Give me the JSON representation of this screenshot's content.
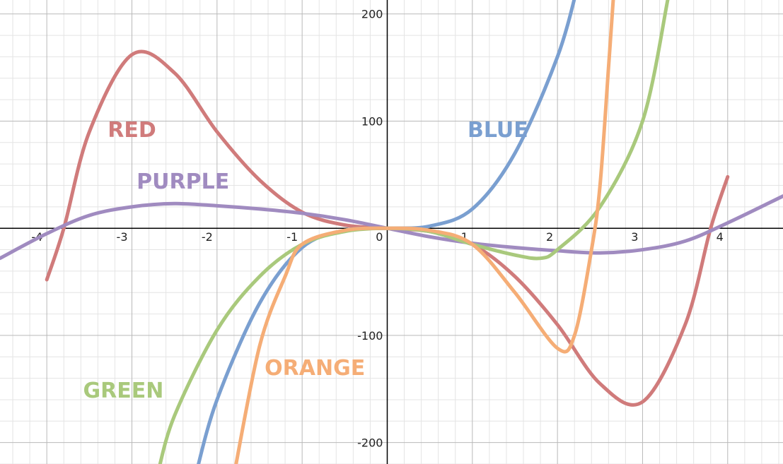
{
  "chart_data": {
    "type": "line",
    "title": "",
    "xlabel": "",
    "ylabel": "",
    "xlim": [
      -4.55,
      4.65
    ],
    "ylim": [
      -220,
      213
    ],
    "grid": true,
    "minor_grid": true,
    "x_ticks": [
      {
        "value": -4,
        "label": "-4"
      },
      {
        "value": -3,
        "label": "-3"
      },
      {
        "value": -2,
        "label": "-2"
      },
      {
        "value": -1,
        "label": "-1"
      },
      {
        "value": 0,
        "label": "0"
      },
      {
        "value": 1,
        "label": "1"
      },
      {
        "value": 2,
        "label": "2"
      },
      {
        "value": 3,
        "label": "3"
      },
      {
        "value": 4,
        "label": "4"
      }
    ],
    "y_ticks": [
      {
        "value": 200,
        "label": "200"
      },
      {
        "value": 100,
        "label": "100"
      },
      {
        "value": -100,
        "label": "-100"
      },
      {
        "value": -200,
        "label": "-200"
      }
    ],
    "series": [
      {
        "name": "RED",
        "color": "#d07b7b",
        "label_at": [
          -3.0,
          85
        ],
        "points": [
          [
            -4.0,
            -48
          ],
          [
            -3.8,
            0
          ],
          [
            -3.5,
            90
          ],
          [
            -3.0,
            162
          ],
          [
            -2.5,
            145
          ],
          [
            -2.0,
            90
          ],
          [
            -1.5,
            45
          ],
          [
            -1.0,
            15
          ],
          [
            -0.5,
            3
          ],
          [
            0.0,
            0
          ],
          [
            0.5,
            -3
          ],
          [
            1.0,
            -15
          ],
          [
            1.5,
            -45
          ],
          [
            2.0,
            -90
          ],
          [
            2.5,
            -145
          ],
          [
            3.0,
            -162
          ],
          [
            3.5,
            -90
          ],
          [
            3.8,
            0
          ],
          [
            4.0,
            48
          ]
        ]
      },
      {
        "name": "PURPLE",
        "color": "#a08bc0",
        "label_at": [
          -2.4,
          37
        ],
        "points": [
          [
            -4.55,
            -28
          ],
          [
            -4.0,
            -5
          ],
          [
            -3.5,
            12
          ],
          [
            -3.0,
            20
          ],
          [
            -2.5,
            23
          ],
          [
            -2.0,
            21
          ],
          [
            -1.5,
            18
          ],
          [
            -1.0,
            14
          ],
          [
            -0.5,
            8
          ],
          [
            0.0,
            0
          ],
          [
            0.5,
            -8
          ],
          [
            1.0,
            -14
          ],
          [
            1.5,
            -18
          ],
          [
            2.0,
            -21
          ],
          [
            2.5,
            -23
          ],
          [
            3.0,
            -20
          ],
          [
            3.5,
            -12
          ],
          [
            4.0,
            5
          ],
          [
            4.65,
            30
          ]
        ]
      },
      {
        "name": "BLUE",
        "color": "#7a9fd0",
        "label_at": [
          1.3,
          85
        ],
        "points": [
          [
            -2.25,
            -230
          ],
          [
            -2.0,
            -160
          ],
          [
            -1.5,
            -70
          ],
          [
            -1.0,
            -18
          ],
          [
            -0.5,
            -2
          ],
          [
            0.0,
            0
          ],
          [
            0.5,
            2
          ],
          [
            1.0,
            18
          ],
          [
            1.5,
            70
          ],
          [
            2.0,
            160
          ],
          [
            2.25,
            230
          ]
        ]
      },
      {
        "name": "GREEN",
        "color": "#a9c97c",
        "label_at": [
          -3.1,
          -158
        ],
        "points": [
          [
            -2.7,
            -230
          ],
          [
            -2.5,
            -175
          ],
          [
            -2.0,
            -95
          ],
          [
            -1.5,
            -45
          ],
          [
            -1.0,
            -15
          ],
          [
            -0.5,
            -3
          ],
          [
            0.0,
            0
          ],
          [
            0.5,
            -3
          ],
          [
            1.0,
            -15
          ],
          [
            1.5,
            -25
          ],
          [
            1.8,
            -28
          ],
          [
            2.0,
            -20
          ],
          [
            2.5,
            20
          ],
          [
            3.0,
            100
          ],
          [
            3.3,
            215
          ]
        ]
      },
      {
        "name": "ORANGE",
        "color": "#f5ad76",
        "label_at": [
          -0.85,
          -137
        ],
        "points": [
          [
            -1.8,
            -230
          ],
          [
            -1.5,
            -110
          ],
          [
            -1.2,
            -45
          ],
          [
            -1.0,
            -15
          ],
          [
            -0.5,
            -2
          ],
          [
            0.0,
            0
          ],
          [
            0.5,
            -2
          ],
          [
            1.0,
            -15
          ],
          [
            1.5,
            -60
          ],
          [
            2.0,
            -112
          ],
          [
            2.2,
            -100
          ],
          [
            2.4,
            -20
          ],
          [
            2.5,
            40
          ],
          [
            2.6,
            150
          ],
          [
            2.67,
            230
          ]
        ]
      }
    ]
  }
}
